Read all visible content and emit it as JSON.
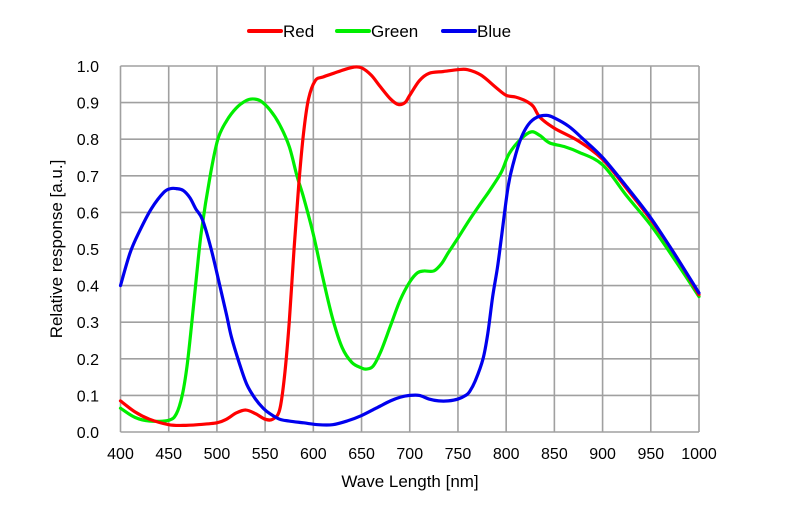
{
  "chart_data": {
    "type": "line",
    "title": "",
    "xlabel": "Wave Length [nm]",
    "ylabel": "Relative response [a.u.]",
    "xlim": [
      400,
      1000
    ],
    "ylim": [
      0,
      1.0
    ],
    "grid": true,
    "legend_position": "top",
    "x_ticks": [
      400,
      450,
      500,
      550,
      600,
      650,
      700,
      750,
      800,
      850,
      900,
      950,
      1000
    ],
    "x_tick_labels": [
      "400",
      "450",
      "500",
      "550",
      "600",
      "650",
      "700",
      "750",
      "800",
      "850",
      "900",
      "950",
      "1000"
    ],
    "y_ticks": [
      0.0,
      0.1,
      0.2,
      0.3,
      0.4,
      0.5,
      0.6,
      0.7,
      0.8,
      0.9,
      1.0
    ],
    "y_tick_labels": [
      "0.0",
      "0.1",
      "0.2",
      "0.3",
      "0.4",
      "0.5",
      "0.6",
      "0.7",
      "0.8",
      "0.9",
      "1.0"
    ],
    "series": [
      {
        "name": "Red",
        "color": "#ff0000",
        "x": [
          400,
          415,
          430,
          450,
          465,
          480,
          500,
          510,
          520,
          530,
          540,
          550,
          558,
          565,
          570,
          575,
          580,
          585,
          590,
          595,
          602,
          610,
          621,
          632,
          642,
          650,
          660,
          669,
          680,
          688,
          695,
          700,
          710,
          720,
          735,
          750,
          760,
          774,
          790,
          800,
          810,
          820,
          828,
          835,
          850,
          875,
          900,
          925,
          950,
          975,
          1000
        ],
        "values": [
          0.085,
          0.055,
          0.035,
          0.02,
          0.018,
          0.02,
          0.025,
          0.035,
          0.052,
          0.06,
          0.05,
          0.035,
          0.035,
          0.06,
          0.15,
          0.3,
          0.5,
          0.68,
          0.82,
          0.91,
          0.96,
          0.97,
          0.98,
          0.99,
          0.997,
          0.995,
          0.975,
          0.945,
          0.91,
          0.895,
          0.9,
          0.92,
          0.96,
          0.98,
          0.985,
          0.99,
          0.99,
          0.975,
          0.94,
          0.92,
          0.915,
          0.905,
          0.89,
          0.86,
          0.83,
          0.795,
          0.745,
          0.665,
          0.58,
          0.485,
          0.375
        ]
      },
      {
        "name": "Green",
        "color": "#00ee00",
        "x": [
          400,
          415,
          430,
          450,
          458,
          464,
          469,
          474,
          479,
          484,
          493,
          501,
          510,
          520,
          530,
          537,
          545,
          555,
          565,
          575,
          583,
          590,
          600,
          610,
          620,
          630,
          640,
          650,
          655,
          662,
          670,
          680,
          690,
          700,
          708,
          715,
          725,
          733,
          740,
          750,
          762,
          775,
          783,
          795,
          803,
          815,
          826,
          835,
          845,
          860,
          875,
          900,
          925,
          950,
          975,
          1000
        ],
        "values": [
          0.065,
          0.04,
          0.03,
          0.032,
          0.05,
          0.1,
          0.18,
          0.3,
          0.43,
          0.55,
          0.7,
          0.8,
          0.85,
          0.885,
          0.905,
          0.91,
          0.905,
          0.88,
          0.84,
          0.78,
          0.7,
          0.64,
          0.54,
          0.42,
          0.31,
          0.23,
          0.19,
          0.175,
          0.172,
          0.18,
          0.22,
          0.29,
          0.36,
          0.41,
          0.435,
          0.44,
          0.44,
          0.46,
          0.49,
          0.53,
          0.58,
          0.63,
          0.66,
          0.71,
          0.76,
          0.8,
          0.82,
          0.81,
          0.79,
          0.78,
          0.765,
          0.73,
          0.645,
          0.565,
          0.47,
          0.37
        ]
      },
      {
        "name": "Blue",
        "color": "#0000ee",
        "x": [
          400,
          410,
          420,
          432,
          445,
          452,
          458,
          465,
          472,
          478,
          485,
          494,
          503,
          510,
          515,
          523,
          531,
          540,
          548,
          555,
          565,
          575,
          590,
          605,
          620,
          635,
          650,
          665,
          680,
          690,
          700,
          710,
          720,
          730,
          740,
          750,
          758,
          762,
          768,
          776,
          781,
          786,
          791,
          795,
          802,
          808,
          815,
          823,
          832,
          842,
          850,
          865,
          880,
          900,
          925,
          950,
          975,
          1000
        ],
        "values": [
          0.4,
          0.49,
          0.55,
          0.61,
          0.655,
          0.665,
          0.665,
          0.66,
          0.64,
          0.61,
          0.58,
          0.5,
          0.4,
          0.32,
          0.26,
          0.19,
          0.13,
          0.09,
          0.065,
          0.05,
          0.035,
          0.03,
          0.025,
          0.02,
          0.02,
          0.03,
          0.045,
          0.065,
          0.085,
          0.095,
          0.1,
          0.1,
          0.09,
          0.085,
          0.085,
          0.09,
          0.1,
          0.11,
          0.14,
          0.2,
          0.27,
          0.37,
          0.45,
          0.53,
          0.67,
          0.74,
          0.8,
          0.84,
          0.86,
          0.865,
          0.858,
          0.835,
          0.8,
          0.75,
          0.67,
          0.585,
          0.485,
          0.38
        ]
      }
    ]
  },
  "legend": {
    "items": [
      {
        "label": "Red",
        "color": "#ff0000"
      },
      {
        "label": "Green",
        "color": "#00ee00"
      },
      {
        "label": "Blue",
        "color": "#0000ee"
      }
    ]
  },
  "axes": {
    "x_title": "Wave Length [nm]",
    "y_title": "Relative response [a.u.]"
  },
  "style": {
    "grid_color": "#a0a0a0",
    "background": "#ffffff"
  }
}
